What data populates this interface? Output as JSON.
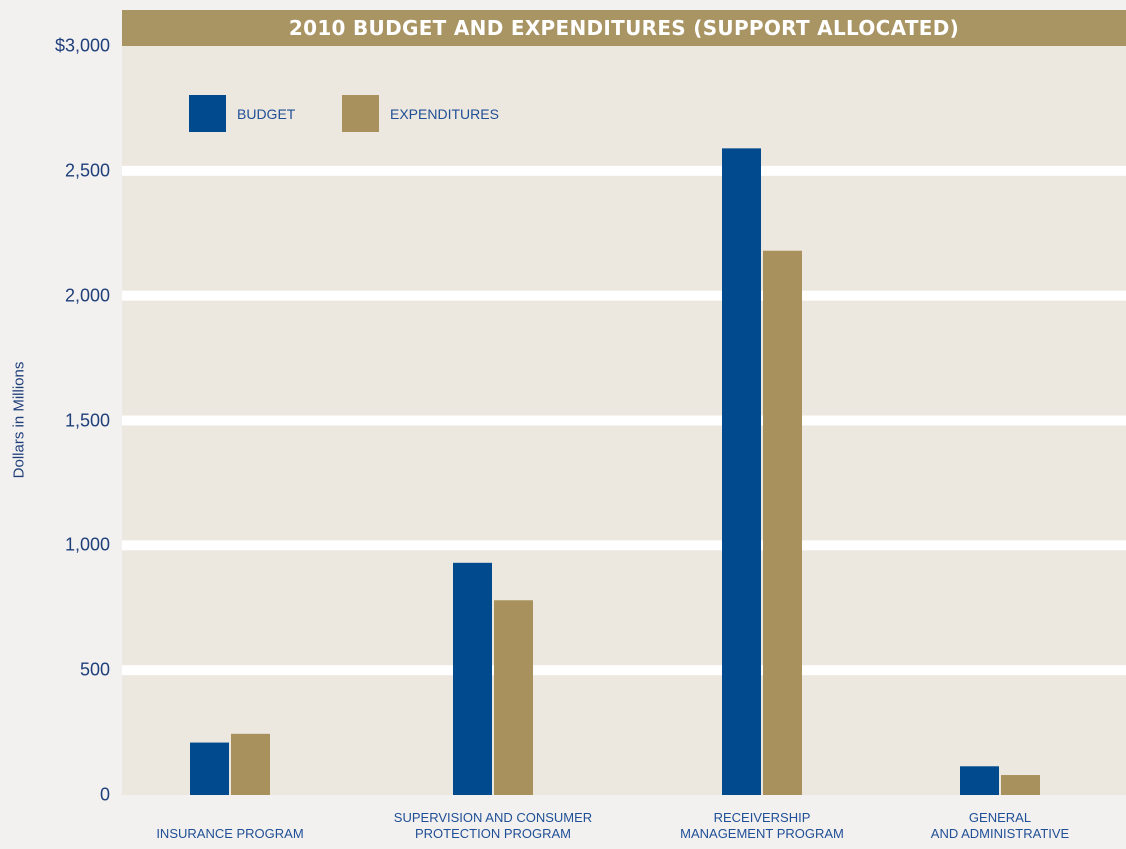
{
  "chart_data": {
    "type": "bar",
    "title": "2010 BUDGET AND EXPENDITURES (SUPPORT ALLOCATED)",
    "ylabel": "Dollars in Millions",
    "xlabel": "",
    "categories": [
      "INSURANCE PROGRAM",
      "SUPERVISION AND CONSUMER\nPROTECTION PROGRAM",
      "RECEIVERSHIP\nMANAGEMENT PROGRAM",
      "GENERAL\nAND ADMINISTRATIVE"
    ],
    "series": [
      {
        "name": "BUDGET",
        "color": "#004a8d",
        "values": [
          210,
          930,
          2590,
          115
        ]
      },
      {
        "name": "EXPENDITURES",
        "color": "#a8915c",
        "values": [
          245,
          780,
          2180,
          80
        ]
      }
    ],
    "ylim": [
      0,
      3000
    ],
    "yticks": [
      0,
      500,
      1000,
      1500,
      2000,
      2500,
      3000
    ],
    "ytick_labels": [
      "0",
      "500",
      "1,000",
      "1,500",
      "2,000",
      "2,500",
      "$3,000"
    ],
    "grid": true,
    "legend_position": "top-left",
    "background_color": "#ece7df",
    "grid_color": "#ffffff"
  }
}
